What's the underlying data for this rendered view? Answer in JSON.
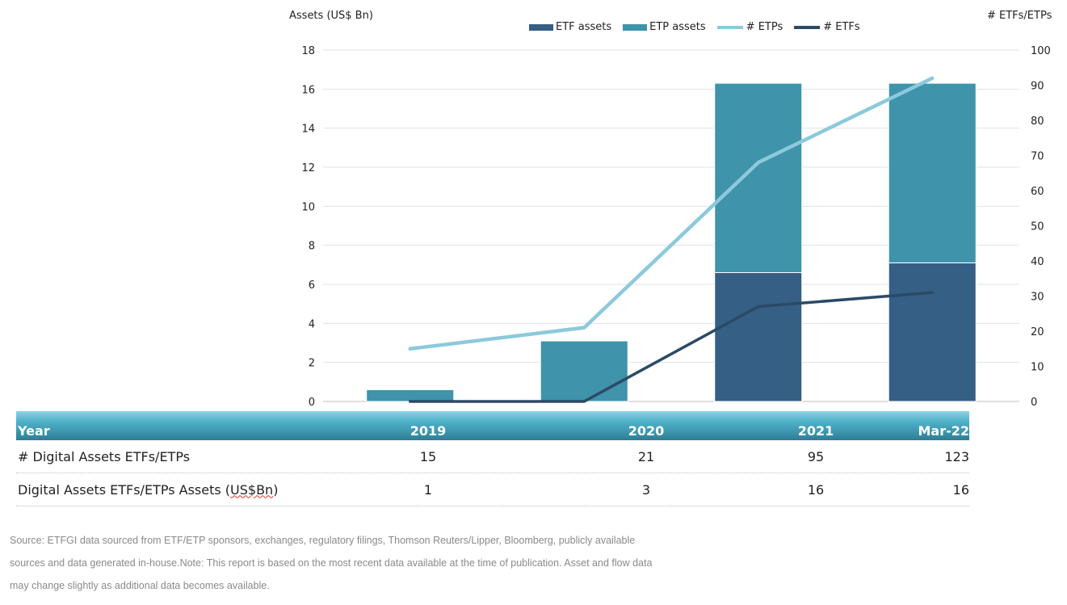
{
  "chart_data": {
    "type": "bar",
    "categories": [
      "2019",
      "2020",
      "2021",
      "Mar-22"
    ],
    "series": [
      {
        "name": "ETF assets",
        "kind": "stacked-bar",
        "axis": "left",
        "color": "#355f84",
        "values": [
          0,
          0,
          6.6,
          7.1
        ]
      },
      {
        "name": "ETP assets",
        "kind": "stacked-bar",
        "axis": "left",
        "color": "#3f93aa",
        "values": [
          0.6,
          3.1,
          9.7,
          9.2
        ]
      },
      {
        "name": "# ETPs",
        "kind": "line",
        "axis": "right",
        "color": "#8cc9dc",
        "values": [
          15,
          21,
          68,
          92
        ]
      },
      {
        "name": "# ETFs",
        "kind": "line",
        "axis": "right",
        "color": "#2b4a66",
        "values": [
          0,
          0,
          27,
          31
        ]
      }
    ],
    "ylabel_left": "Assets (US$ Bn)",
    "ylabel_right": "# ETFs/ETPs",
    "ylim_left": [
      0,
      18
    ],
    "ylim_right": [
      0,
      100
    ],
    "yticks_left": [
      "0",
      "2",
      "4",
      "6",
      "8",
      "10",
      "12",
      "14",
      "16",
      "18"
    ],
    "yticks_right": [
      "0",
      "10",
      "20",
      "30",
      "40",
      "50",
      "60",
      "70",
      "80",
      "90",
      "100"
    ],
    "grid": true,
    "legend_position": "top"
  },
  "legend": [
    {
      "label": "ETF assets",
      "style": "box",
      "color": "#355f84"
    },
    {
      "label": "ETP assets",
      "style": "box",
      "color": "#3f93aa"
    },
    {
      "label": "# ETPs",
      "style": "line",
      "color": "#8cc9dc"
    },
    {
      "label": "# ETFs",
      "style": "line",
      "color": "#2b4a66"
    }
  ],
  "table": {
    "header": {
      "label": "Year",
      "values": [
        "2019",
        "2020",
        "2021",
        "Mar-22"
      ]
    },
    "rows": [
      {
        "label": "# Digital Assets ETFs/ETPs",
        "values": [
          "15",
          "21",
          "95",
          "123"
        ]
      },
      {
        "label_prefix": "Digital Assets ETFs/ETPs Assets (",
        "label_underlined": "US$Bn",
        "label_suffix": ")",
        "values": [
          "1",
          "3",
          "16",
          "16"
        ]
      }
    ]
  },
  "source": {
    "line1": "Source: ETFGI data sourced from ETF/ETP sponsors, exchanges, regulatory filings, Thomson Reuters/Lipper, Bloomberg, publicly available",
    "line2": "sources and data generated in-house.Note: This report is based on the most recent data available at the time of publication. Asset and flow data",
    "line3": "may change slightly as additional data becomes available."
  }
}
